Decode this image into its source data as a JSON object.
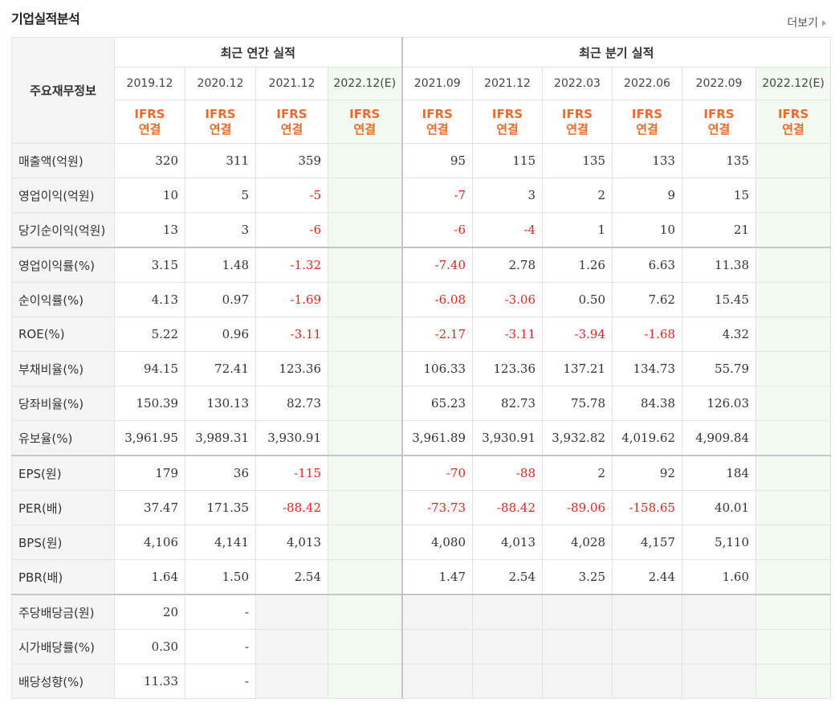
{
  "title": "기업실적분석",
  "more_label": "더보기",
  "header": {
    "row_header": "주요재무정보",
    "annual_label": "최근 연간 실적",
    "quarterly_label": "최근 분기 실적",
    "periods": [
      "2019.12",
      "2020.12",
      "2021.12",
      "2022.12(E)",
      "2021.09",
      "2021.12",
      "2022.03",
      "2022.06",
      "2022.09",
      "2022.12(E)"
    ],
    "type_line1": "IFRS",
    "type_line2": "연결"
  },
  "rows": [
    {
      "label": "매출액(억원)",
      "values": [
        "320",
        "311",
        "359",
        "",
        "95",
        "115",
        "135",
        "133",
        "135",
        ""
      ]
    },
    {
      "label": "영업이익(억원)",
      "values": [
        "10",
        "5",
        "-5",
        "",
        "-7",
        "3",
        "2",
        "9",
        "15",
        ""
      ]
    },
    {
      "label": "당기순이익(억원)",
      "values": [
        "13",
        "3",
        "-6",
        "",
        "-6",
        "-4",
        "1",
        "10",
        "21",
        ""
      ]
    },
    {
      "label": "영업이익률(%)",
      "values": [
        "3.15",
        "1.48",
        "-1.32",
        "",
        "-7.40",
        "2.78",
        "1.26",
        "6.63",
        "11.38",
        ""
      ]
    },
    {
      "label": "순이익률(%)",
      "values": [
        "4.13",
        "0.97",
        "-1.69",
        "",
        "-6.08",
        "-3.06",
        "0.50",
        "7.62",
        "15.45",
        ""
      ]
    },
    {
      "label": "ROE(%)",
      "values": [
        "5.22",
        "0.96",
        "-3.11",
        "",
        "-2.17",
        "-3.11",
        "-3.94",
        "-1.68",
        "4.32",
        ""
      ]
    },
    {
      "label": "부채비율(%)",
      "values": [
        "94.15",
        "72.41",
        "123.36",
        "",
        "106.33",
        "123.36",
        "137.21",
        "134.73",
        "55.79",
        ""
      ]
    },
    {
      "label": "당좌비율(%)",
      "values": [
        "150.39",
        "130.13",
        "82.73",
        "",
        "65.23",
        "82.73",
        "75.78",
        "84.38",
        "126.03",
        ""
      ]
    },
    {
      "label": "유보율(%)",
      "values": [
        "3,961.95",
        "3,989.31",
        "3,930.91",
        "",
        "3,961.89",
        "3,930.91",
        "3,932.82",
        "4,019.62",
        "4,909.84",
        ""
      ]
    },
    {
      "label": "EPS(원)",
      "values": [
        "179",
        "36",
        "-115",
        "",
        "-70",
        "-88",
        "2",
        "92",
        "184",
        ""
      ]
    },
    {
      "label": "PER(배)",
      "values": [
        "37.47",
        "171.35",
        "-88.42",
        "",
        "-73.73",
        "-88.42",
        "-89.06",
        "-158.65",
        "40.01",
        ""
      ]
    },
    {
      "label": "BPS(원)",
      "values": [
        "4,106",
        "4,141",
        "4,013",
        "",
        "4,080",
        "4,013",
        "4,028",
        "4,157",
        "5,110",
        ""
      ]
    },
    {
      "label": "PBR(배)",
      "values": [
        "1.64",
        "1.50",
        "2.54",
        "",
        "1.47",
        "2.54",
        "3.25",
        "2.44",
        "1.60",
        ""
      ]
    },
    {
      "label": "주당배당금(원)",
      "values": [
        "20",
        "-",
        "",
        "",
        "",
        "",
        "",
        "",
        "",
        ""
      ]
    },
    {
      "label": "시가배당률(%)",
      "values": [
        "0.30",
        "-",
        "",
        "",
        "",
        "",
        "",
        "",
        "",
        ""
      ]
    },
    {
      "label": "배당성향(%)",
      "values": [
        "11.33",
        "-",
        "",
        "",
        "",
        "",
        "",
        "",
        "",
        ""
      ]
    }
  ],
  "colors": {
    "negative": "#e0261e",
    "ifrs": "#ee6a2b",
    "estimate_bg": "#f2f9f0",
    "label_bg": "#f5f5f5"
  }
}
